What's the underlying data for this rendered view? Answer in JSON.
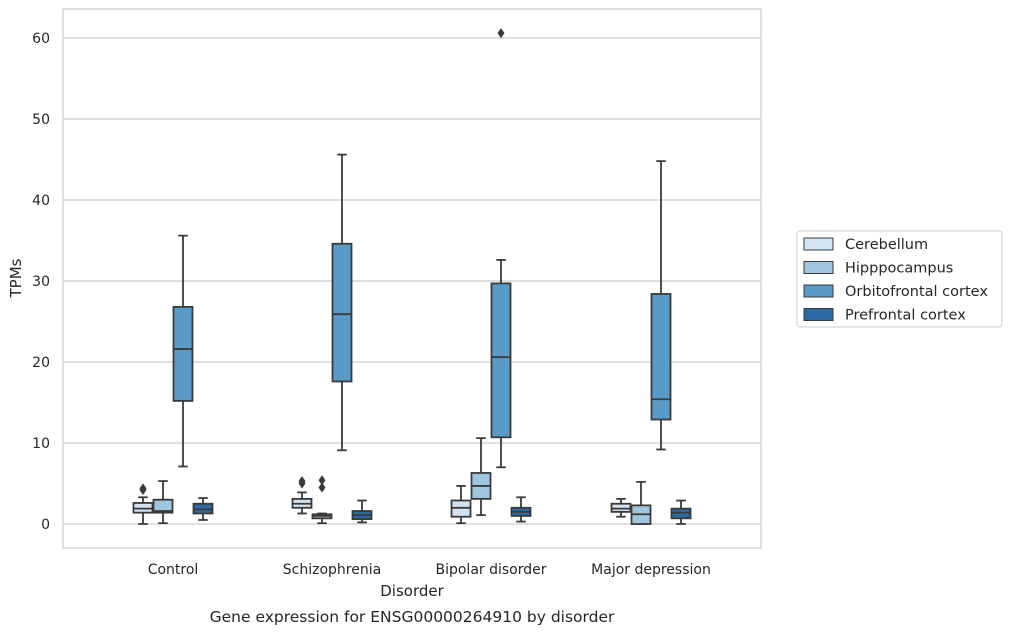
{
  "caption": "Gene expression for ENSG00000264910 by disorder",
  "chart_data": {
    "type": "box",
    "xlabel": "Disorder",
    "ylabel": "TPMs",
    "ylim": [
      -2.8,
      63.5
    ],
    "yticks": [
      0,
      10,
      20,
      30,
      40,
      50,
      60
    ],
    "grid": "horizontal",
    "legend_position": "right",
    "categories": [
      "Control",
      "Schizophrenia",
      "Bipolar disorder",
      "Major depression"
    ],
    "series": [
      {
        "name": "Cerebellum",
        "color": "#d3e3f0",
        "boxes": [
          {
            "whislo": 0.0,
            "q1": 1.4,
            "med": 1.9,
            "q3": 2.6,
            "whishi": 3.3,
            "fliers": [
              4.2,
              4.4
            ]
          },
          {
            "whislo": 1.3,
            "q1": 2.0,
            "med": 2.5,
            "q3": 3.1,
            "whishi": 3.9,
            "fliers": [
              5.0,
              5.3
            ]
          },
          {
            "whislo": 0.1,
            "q1": 0.9,
            "med": 2.0,
            "q3": 2.9,
            "whishi": 4.7,
            "fliers": []
          },
          {
            "whislo": 0.9,
            "q1": 1.5,
            "med": 1.9,
            "q3": 2.5,
            "whishi": 3.1,
            "fliers": []
          }
        ]
      },
      {
        "name": "Hipppocampus",
        "color": "#a0c5de",
        "boxes": [
          {
            "whislo": 0.1,
            "q1": 1.4,
            "med": 1.6,
            "q3": 3.0,
            "whishi": 5.3,
            "fliers": []
          },
          {
            "whislo": 0.1,
            "q1": 0.7,
            "med": 1.0,
            "q3": 1.2,
            "whishi": 1.3,
            "fliers": [
              4.5,
              5.4
            ]
          },
          {
            "whislo": 1.1,
            "q1": 3.1,
            "med": 4.7,
            "q3": 6.3,
            "whishi": 10.6,
            "fliers": []
          },
          {
            "whislo": 0.0,
            "q1": 0.0,
            "med": 1.2,
            "q3": 2.3,
            "whishi": 5.2,
            "fliers": []
          }
        ]
      },
      {
        "name": "Orbitofrontal cortex",
        "color": "#5a9ac7",
        "boxes": [
          {
            "whislo": 7.1,
            "q1": 15.2,
            "med": 21.6,
            "q3": 26.8,
            "whishi": 35.6,
            "fliers": []
          },
          {
            "whislo": 9.1,
            "q1": 17.6,
            "med": 25.9,
            "q3": 34.6,
            "whishi": 45.6,
            "fliers": []
          },
          {
            "whislo": 7.0,
            "q1": 10.7,
            "med": 20.6,
            "q3": 29.7,
            "whishi": 32.6,
            "fliers": [
              60.6
            ]
          },
          {
            "whislo": 9.2,
            "q1": 12.9,
            "med": 15.4,
            "q3": 28.4,
            "whishi": 44.8,
            "fliers": []
          }
        ]
      },
      {
        "name": "Prefrontal cortex",
        "color": "#2c6aa5",
        "boxes": [
          {
            "whislo": 0.5,
            "q1": 1.3,
            "med": 1.8,
            "q3": 2.5,
            "whishi": 3.2,
            "fliers": []
          },
          {
            "whislo": 0.2,
            "q1": 0.6,
            "med": 1.1,
            "q3": 1.6,
            "whishi": 2.9,
            "fliers": []
          },
          {
            "whislo": 0.3,
            "q1": 1.0,
            "med": 1.5,
            "q3": 2.0,
            "whishi": 3.3,
            "fliers": []
          },
          {
            "whislo": 0.0,
            "q1": 0.7,
            "med": 1.4,
            "q3": 1.9,
            "whishi": 2.9,
            "fliers": []
          }
        ]
      }
    ]
  }
}
